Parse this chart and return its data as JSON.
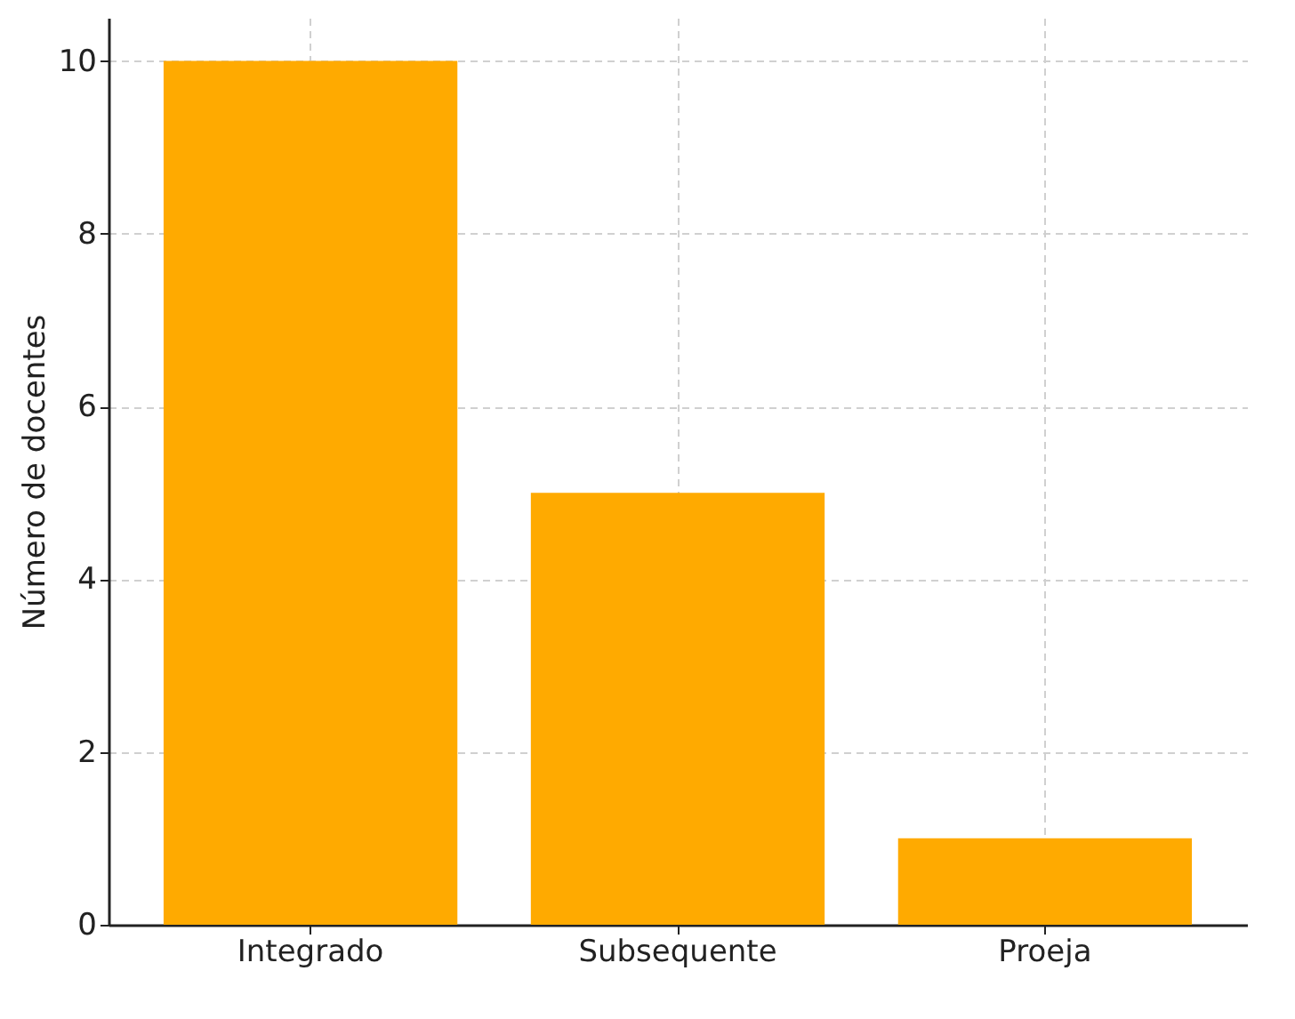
{
  "chart_data": {
    "type": "bar",
    "ylabel": "Número de docentes",
    "categories": [
      "Integrado",
      "Subsequente",
      "Proeja"
    ],
    "values": [
      10,
      5,
      1
    ],
    "color": "#ffaa00",
    "ylim": [
      0,
      10.5
    ],
    "yticks": [
      0,
      2,
      4,
      6,
      8,
      10
    ],
    "grid": true
  }
}
